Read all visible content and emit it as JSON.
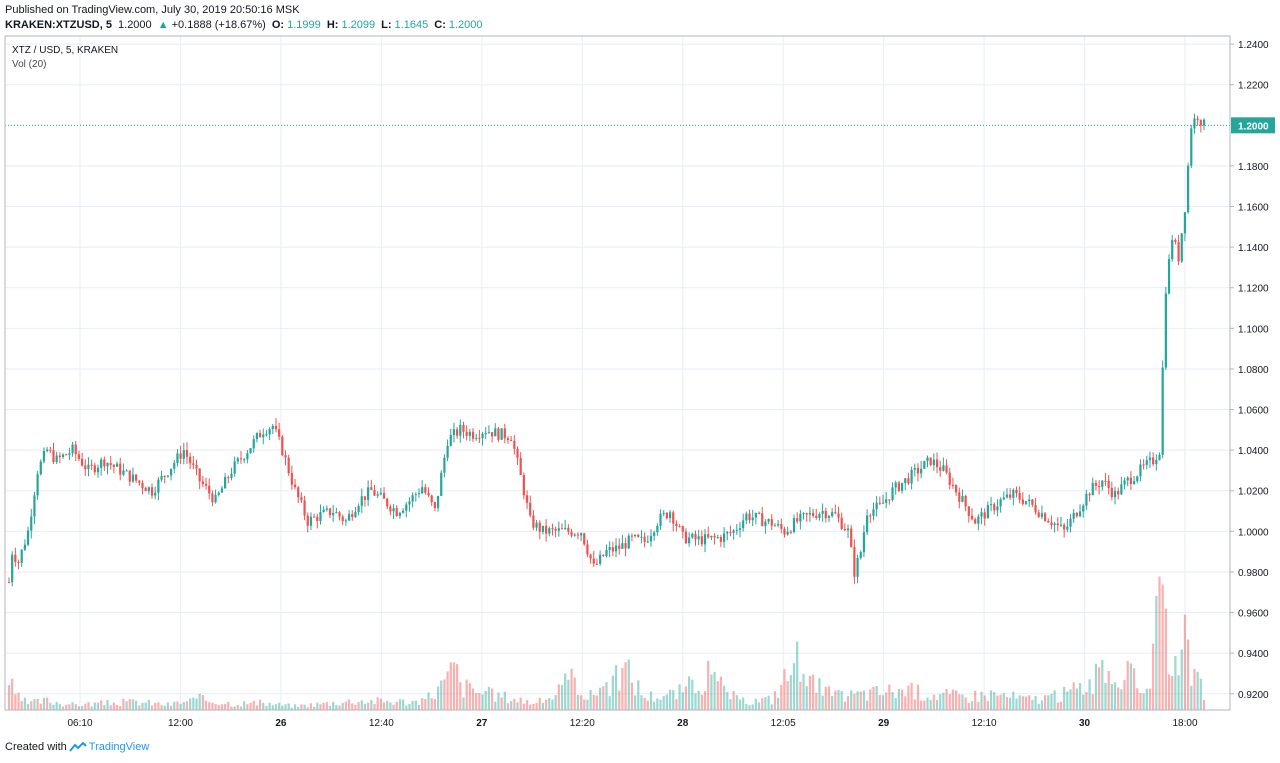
{
  "header": {
    "published": "Published on TradingView.com, July 30, 2019 20:50:16 MSK",
    "symbol": "KRAKEN:XTZUSD, 5",
    "last": "1.2000",
    "change_arrow": "▲",
    "change": "+0.1888 (+18.67%)",
    "o_label": "O:",
    "o_value": "1.1999",
    "h_label": "H:",
    "h_value": "1.2099",
    "l_label": "L:",
    "l_value": "1.1645",
    "c_label": "C:",
    "c_value": "1.2000"
  },
  "footer": {
    "created_with": "Created with",
    "brand": "TradingView"
  },
  "colors": {
    "up": "#26a69a",
    "down": "#ef5350",
    "grid": "#e6eef5",
    "price_line": "#26a69a"
  },
  "chart_data": {
    "type": "candlestick",
    "title": "XTZ / USD, 5, KRAKEN",
    "indicator": "Vol (20)",
    "ylim": [
      0.912,
      1.244
    ],
    "yticks": [
      "1.2400",
      "1.2200",
      "1.1800",
      "1.1600",
      "1.1400",
      "1.1200",
      "1.1000",
      "1.0800",
      "1.0600",
      "1.0400",
      "1.0200",
      "1.0000",
      "0.9800",
      "0.9600",
      "0.9400",
      "0.9200"
    ],
    "ytick_values": [
      1.24,
      1.22,
      1.18,
      1.16,
      1.14,
      1.12,
      1.1,
      1.08,
      1.06,
      1.04,
      1.02,
      1.0,
      0.98,
      0.96,
      0.94,
      0.92
    ],
    "last_price_label": "1.2000",
    "last_price": 1.2,
    "xticks": [
      "06:10",
      "12:00",
      "26",
      "12:40",
      "27",
      "12:20",
      "28",
      "12:05",
      "29",
      "12:10",
      "30",
      "18:00"
    ],
    "xtick_bold": [
      false,
      false,
      true,
      false,
      true,
      false,
      true,
      false,
      true,
      false,
      true,
      false
    ],
    "price_path": [
      [
        0,
        0.975
      ],
      [
        1,
        0.99
      ],
      [
        3,
        0.985
      ],
      [
        6,
        1.0
      ],
      [
        9,
        1.03
      ],
      [
        12,
        1.04
      ],
      [
        15,
        1.035
      ],
      [
        20,
        1.04
      ],
      [
        25,
        1.03
      ],
      [
        30,
        1.035
      ],
      [
        35,
        1.03
      ],
      [
        40,
        1.025
      ],
      [
        45,
        1.02
      ],
      [
        50,
        1.03
      ],
      [
        55,
        1.04
      ],
      [
        60,
        1.025
      ],
      [
        65,
        1.015
      ],
      [
        70,
        1.03
      ],
      [
        75,
        1.04
      ],
      [
        80,
        1.05
      ],
      [
        83,
        1.052
      ],
      [
        86,
        1.04
      ],
      [
        90,
        1.02
      ],
      [
        94,
        1.005
      ],
      [
        98,
        1.008
      ],
      [
        102,
        1.01
      ],
      [
        106,
        1.005
      ],
      [
        110,
        1.015
      ],
      [
        114,
        1.02
      ],
      [
        118,
        1.015
      ],
      [
        122,
        1.01
      ],
      [
        126,
        1.015
      ],
      [
        130,
        1.022
      ],
      [
        134,
        1.01
      ],
      [
        138,
        1.045
      ],
      [
        142,
        1.05
      ],
      [
        146,
        1.048
      ],
      [
        150,
        1.05
      ],
      [
        154,
        1.048
      ],
      [
        158,
        1.047
      ],
      [
        162,
        1.02
      ],
      [
        164,
        1.005
      ],
      [
        168,
        1.0
      ],
      [
        172,
        1.0
      ],
      [
        176,
        1.0
      ],
      [
        180,
        1.0
      ],
      [
        184,
        0.982
      ],
      [
        188,
        0.99
      ],
      [
        192,
        0.992
      ],
      [
        196,
        0.996
      ],
      [
        200,
        0.995
      ],
      [
        204,
        1.005
      ],
      [
        208,
        1.01
      ],
      [
        212,
        0.997
      ],
      [
        216,
        0.996
      ],
      [
        220,
        0.996
      ],
      [
        224,
        0.997
      ],
      [
        228,
        1.0
      ],
      [
        232,
        1.008
      ],
      [
        236,
        1.006
      ],
      [
        240,
        1.004
      ],
      [
        244,
        1.0
      ],
      [
        248,
        1.005
      ],
      [
        252,
        1.008
      ],
      [
        256,
        1.01
      ],
      [
        260,
        1.008
      ],
      [
        264,
        1.0
      ],
      [
        266,
        0.98
      ],
      [
        268,
        0.99
      ],
      [
        270,
        1.01
      ],
      [
        274,
        1.012
      ],
      [
        278,
        1.02
      ],
      [
        282,
        1.025
      ],
      [
        286,
        1.03
      ],
      [
        290,
        1.035
      ],
      [
        294,
        1.03
      ],
      [
        296,
        1.025
      ],
      [
        300,
        1.015
      ],
      [
        304,
        1.005
      ],
      [
        308,
        1.01
      ],
      [
        312,
        1.015
      ],
      [
        316,
        1.018
      ],
      [
        320,
        1.015
      ],
      [
        324,
        1.01
      ],
      [
        328,
        1.005
      ],
      [
        332,
        1.0
      ],
      [
        336,
        1.01
      ],
      [
        340,
        1.02
      ],
      [
        344,
        1.025
      ],
      [
        348,
        1.018
      ],
      [
        352,
        1.025
      ],
      [
        356,
        1.03
      ],
      [
        360,
        1.035
      ],
      [
        362,
        1.04
      ],
      [
        364,
        1.12
      ],
      [
        366,
        1.145
      ],
      [
        368,
        1.135
      ],
      [
        370,
        1.16
      ],
      [
        372,
        1.2
      ],
      [
        374,
        1.205
      ],
      [
        376,
        1.2
      ]
    ],
    "volume_path": [
      [
        0,
        0.22
      ],
      [
        2,
        0.1
      ],
      [
        6,
        0.05
      ],
      [
        12,
        0.07
      ],
      [
        20,
        0.04
      ],
      [
        30,
        0.05
      ],
      [
        40,
        0.06
      ],
      [
        50,
        0.04
      ],
      [
        60,
        0.08
      ],
      [
        70,
        0.05
      ],
      [
        80,
        0.05
      ],
      [
        90,
        0.03
      ],
      [
        100,
        0.05
      ],
      [
        110,
        0.07
      ],
      [
        130,
        0.06
      ],
      [
        138,
        0.22
      ],
      [
        140,
        0.35
      ],
      [
        142,
        0.18
      ],
      [
        150,
        0.12
      ],
      [
        158,
        0.09
      ],
      [
        166,
        0.05
      ],
      [
        172,
        0.12
      ],
      [
        176,
        0.2
      ],
      [
        178,
        0.25
      ],
      [
        182,
        0.08
      ],
      [
        186,
        0.18
      ],
      [
        190,
        0.2
      ],
      [
        194,
        0.3
      ],
      [
        200,
        0.1
      ],
      [
        210,
        0.12
      ],
      [
        220,
        0.25
      ],
      [
        230,
        0.06
      ],
      [
        240,
        0.08
      ],
      [
        250,
        0.45
      ],
      [
        252,
        0.2
      ],
      [
        260,
        0.1
      ],
      [
        270,
        0.12
      ],
      [
        280,
        0.15
      ],
      [
        290,
        0.12
      ],
      [
        300,
        0.1
      ],
      [
        310,
        0.12
      ],
      [
        320,
        0.08
      ],
      [
        330,
        0.1
      ],
      [
        340,
        0.2
      ],
      [
        346,
        0.28
      ],
      [
        352,
        0.25
      ],
      [
        358,
        0.15
      ],
      [
        362,
        0.7
      ],
      [
        363,
        0.92
      ],
      [
        364,
        0.5
      ],
      [
        366,
        0.4
      ],
      [
        368,
        0.18
      ],
      [
        370,
        0.48
      ],
      [
        372,
        0.35
      ],
      [
        374,
        0.2
      ],
      [
        376,
        0.12
      ]
    ],
    "x_count": 377,
    "grid": true
  }
}
